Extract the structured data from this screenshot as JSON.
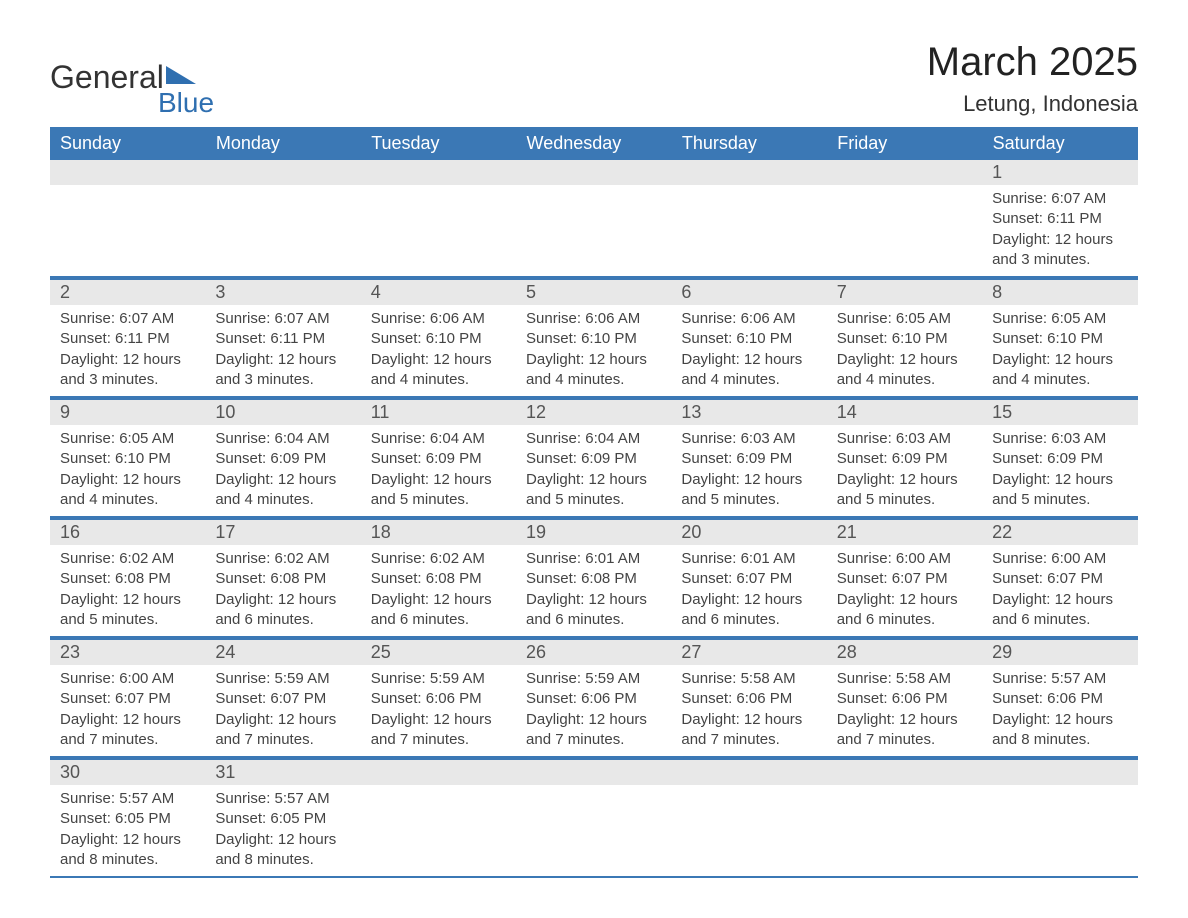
{
  "brand": {
    "text1": "General",
    "text2": "Blue"
  },
  "title": "March 2025",
  "location": "Letung, Indonesia",
  "colors": {
    "header_bg": "#3b78b5",
    "header_text": "#ffffff",
    "daynum_bg": "#e8e8e8",
    "row_divider": "#3b78b5",
    "brand_accent": "#2f6fb0",
    "body_text": "#444444",
    "background": "#ffffff"
  },
  "daysOfWeek": [
    "Sunday",
    "Monday",
    "Tuesday",
    "Wednesday",
    "Thursday",
    "Friday",
    "Saturday"
  ],
  "labels": {
    "sunrise": "Sunrise: ",
    "sunset": "Sunset: ",
    "daylight": "Daylight: "
  },
  "weeks": [
    [
      null,
      null,
      null,
      null,
      null,
      null,
      {
        "n": "1",
        "sr": "6:07 AM",
        "ss": "6:11 PM",
        "dl": "12 hours and 3 minutes."
      }
    ],
    [
      {
        "n": "2",
        "sr": "6:07 AM",
        "ss": "6:11 PM",
        "dl": "12 hours and 3 minutes."
      },
      {
        "n": "3",
        "sr": "6:07 AM",
        "ss": "6:11 PM",
        "dl": "12 hours and 3 minutes."
      },
      {
        "n": "4",
        "sr": "6:06 AM",
        "ss": "6:10 PM",
        "dl": "12 hours and 4 minutes."
      },
      {
        "n": "5",
        "sr": "6:06 AM",
        "ss": "6:10 PM",
        "dl": "12 hours and 4 minutes."
      },
      {
        "n": "6",
        "sr": "6:06 AM",
        "ss": "6:10 PM",
        "dl": "12 hours and 4 minutes."
      },
      {
        "n": "7",
        "sr": "6:05 AM",
        "ss": "6:10 PM",
        "dl": "12 hours and 4 minutes."
      },
      {
        "n": "8",
        "sr": "6:05 AM",
        "ss": "6:10 PM",
        "dl": "12 hours and 4 minutes."
      }
    ],
    [
      {
        "n": "9",
        "sr": "6:05 AM",
        "ss": "6:10 PM",
        "dl": "12 hours and 4 minutes."
      },
      {
        "n": "10",
        "sr": "6:04 AM",
        "ss": "6:09 PM",
        "dl": "12 hours and 4 minutes."
      },
      {
        "n": "11",
        "sr": "6:04 AM",
        "ss": "6:09 PM",
        "dl": "12 hours and 5 minutes."
      },
      {
        "n": "12",
        "sr": "6:04 AM",
        "ss": "6:09 PM",
        "dl": "12 hours and 5 minutes."
      },
      {
        "n": "13",
        "sr": "6:03 AM",
        "ss": "6:09 PM",
        "dl": "12 hours and 5 minutes."
      },
      {
        "n": "14",
        "sr": "6:03 AM",
        "ss": "6:09 PM",
        "dl": "12 hours and 5 minutes."
      },
      {
        "n": "15",
        "sr": "6:03 AM",
        "ss": "6:09 PM",
        "dl": "12 hours and 5 minutes."
      }
    ],
    [
      {
        "n": "16",
        "sr": "6:02 AM",
        "ss": "6:08 PM",
        "dl": "12 hours and 5 minutes."
      },
      {
        "n": "17",
        "sr": "6:02 AM",
        "ss": "6:08 PM",
        "dl": "12 hours and 6 minutes."
      },
      {
        "n": "18",
        "sr": "6:02 AM",
        "ss": "6:08 PM",
        "dl": "12 hours and 6 minutes."
      },
      {
        "n": "19",
        "sr": "6:01 AM",
        "ss": "6:08 PM",
        "dl": "12 hours and 6 minutes."
      },
      {
        "n": "20",
        "sr": "6:01 AM",
        "ss": "6:07 PM",
        "dl": "12 hours and 6 minutes."
      },
      {
        "n": "21",
        "sr": "6:00 AM",
        "ss": "6:07 PM",
        "dl": "12 hours and 6 minutes."
      },
      {
        "n": "22",
        "sr": "6:00 AM",
        "ss": "6:07 PM",
        "dl": "12 hours and 6 minutes."
      }
    ],
    [
      {
        "n": "23",
        "sr": "6:00 AM",
        "ss": "6:07 PM",
        "dl": "12 hours and 7 minutes."
      },
      {
        "n": "24",
        "sr": "5:59 AM",
        "ss": "6:07 PM",
        "dl": "12 hours and 7 minutes."
      },
      {
        "n": "25",
        "sr": "5:59 AM",
        "ss": "6:06 PM",
        "dl": "12 hours and 7 minutes."
      },
      {
        "n": "26",
        "sr": "5:59 AM",
        "ss": "6:06 PM",
        "dl": "12 hours and 7 minutes."
      },
      {
        "n": "27",
        "sr": "5:58 AM",
        "ss": "6:06 PM",
        "dl": "12 hours and 7 minutes."
      },
      {
        "n": "28",
        "sr": "5:58 AM",
        "ss": "6:06 PM",
        "dl": "12 hours and 7 minutes."
      },
      {
        "n": "29",
        "sr": "5:57 AM",
        "ss": "6:06 PM",
        "dl": "12 hours and 8 minutes."
      }
    ],
    [
      {
        "n": "30",
        "sr": "5:57 AM",
        "ss": "6:05 PM",
        "dl": "12 hours and 8 minutes."
      },
      {
        "n": "31",
        "sr": "5:57 AM",
        "ss": "6:05 PM",
        "dl": "12 hours and 8 minutes."
      },
      null,
      null,
      null,
      null,
      null
    ]
  ]
}
